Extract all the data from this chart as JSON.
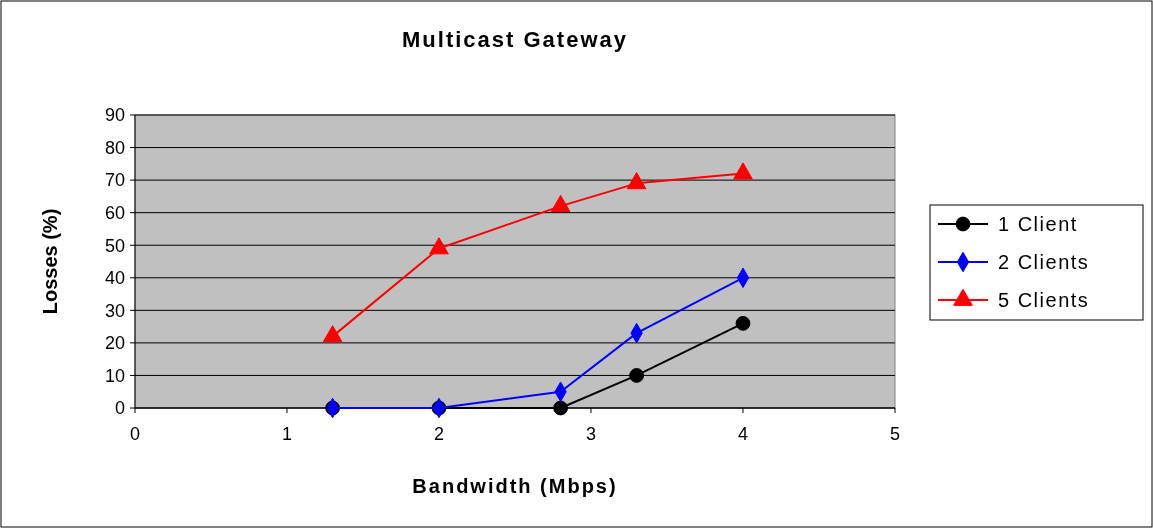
{
  "chart_data": {
    "type": "line",
    "title": "Multicast Gateway",
    "xlabel": "Bandwidth (Mbps)",
    "ylabel": "Losses (%)",
    "xlim": [
      0,
      5
    ],
    "xticks": [
      0,
      1,
      2,
      3,
      4,
      5
    ],
    "ylim": [
      0,
      90
    ],
    "yticks": [
      0,
      10,
      20,
      30,
      40,
      50,
      60,
      70,
      80,
      90
    ],
    "grid": "y",
    "legend": "right",
    "line_style": "solid",
    "series": [
      {
        "name": "1 Client",
        "color": "#000000",
        "marker": "circle",
        "x": [
          1.3,
          2,
          2.8,
          3.3,
          4
        ],
        "values": [
          0,
          0,
          0,
          10,
          26
        ]
      },
      {
        "name": "2 Clients",
        "color": "#0000ff",
        "marker": "diamond",
        "x": [
          1.3,
          2,
          2.8,
          3.3,
          4
        ],
        "values": [
          0,
          0,
          5,
          23,
          40
        ]
      },
      {
        "name": "5 Clients",
        "color": "#ff0000",
        "marker": "triangle",
        "x": [
          1.3,
          2,
          2.8,
          3.3,
          4
        ],
        "values": [
          22,
          49,
          62,
          69,
          72
        ]
      }
    ]
  }
}
